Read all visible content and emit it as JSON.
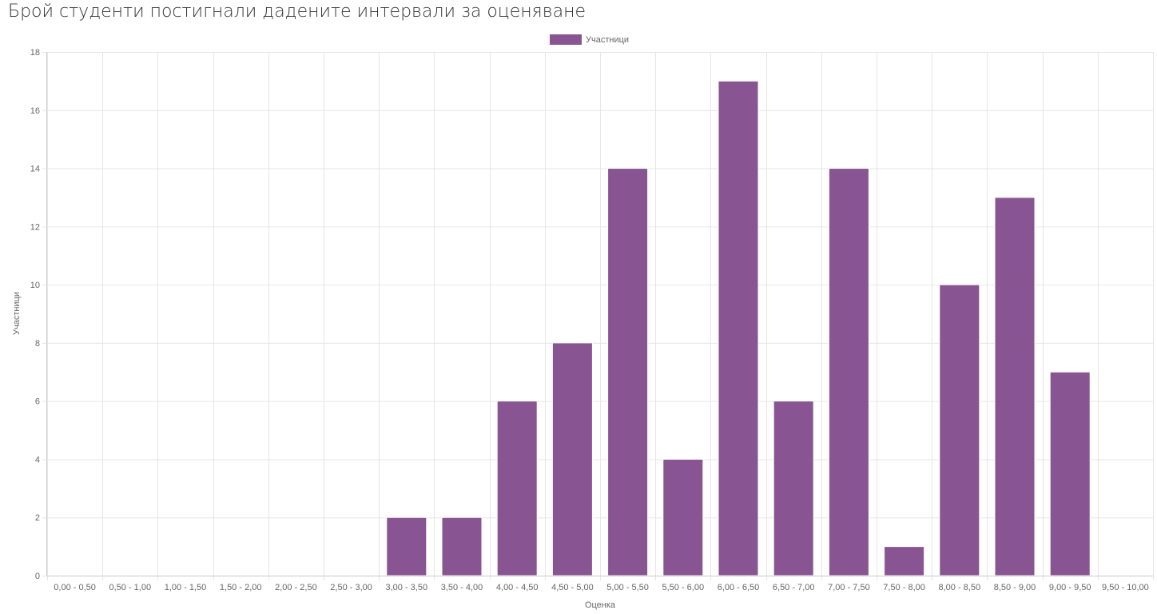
{
  "page": {
    "title": "Брой студенти постигнали дадените интервали за оценяване"
  },
  "colors": {
    "bar_fill": "#885592",
    "bar_stroke": "#ffffff",
    "grid": "#e6e6e6",
    "axis": "#cccccc",
    "tick_text": "#666666",
    "title_text": "#333333"
  },
  "chart_data": {
    "type": "bar",
    "title": "Брой студенти постигнали дадените интервали за оценяване",
    "xlabel": "Оценка",
    "ylabel": "Участници",
    "legend": {
      "position": "top-center",
      "entries": [
        "Участници"
      ]
    },
    "grid": true,
    "ylim": [
      0,
      18
    ],
    "yticks": [
      0,
      2,
      4,
      6,
      8,
      10,
      12,
      14,
      16,
      18
    ],
    "categories": [
      "0,00 - 0,50",
      "0,50 - 1,00",
      "1,00 - 1,50",
      "1,50 - 2,00",
      "2,00 - 2,50",
      "2,50 - 3,00",
      "3,00 - 3,50",
      "3,50 - 4,00",
      "4,00 - 4,50",
      "4,50 - 5,00",
      "5,00 - 5,50",
      "5,50 - 6,00",
      "6,00 - 6,50",
      "6,50 - 7,00",
      "7,00 - 7,50",
      "7,50 - 8,00",
      "8,00 - 8,50",
      "8,50 - 9,00",
      "9,00 - 9,50",
      "9,50 - 10,00"
    ],
    "series": [
      {
        "name": "Участници",
        "values": [
          0,
          0,
          0,
          0,
          0,
          0,
          2,
          2,
          6,
          8,
          14,
          4,
          17,
          6,
          14,
          1,
          10,
          13,
          7,
          0
        ]
      }
    ]
  }
}
